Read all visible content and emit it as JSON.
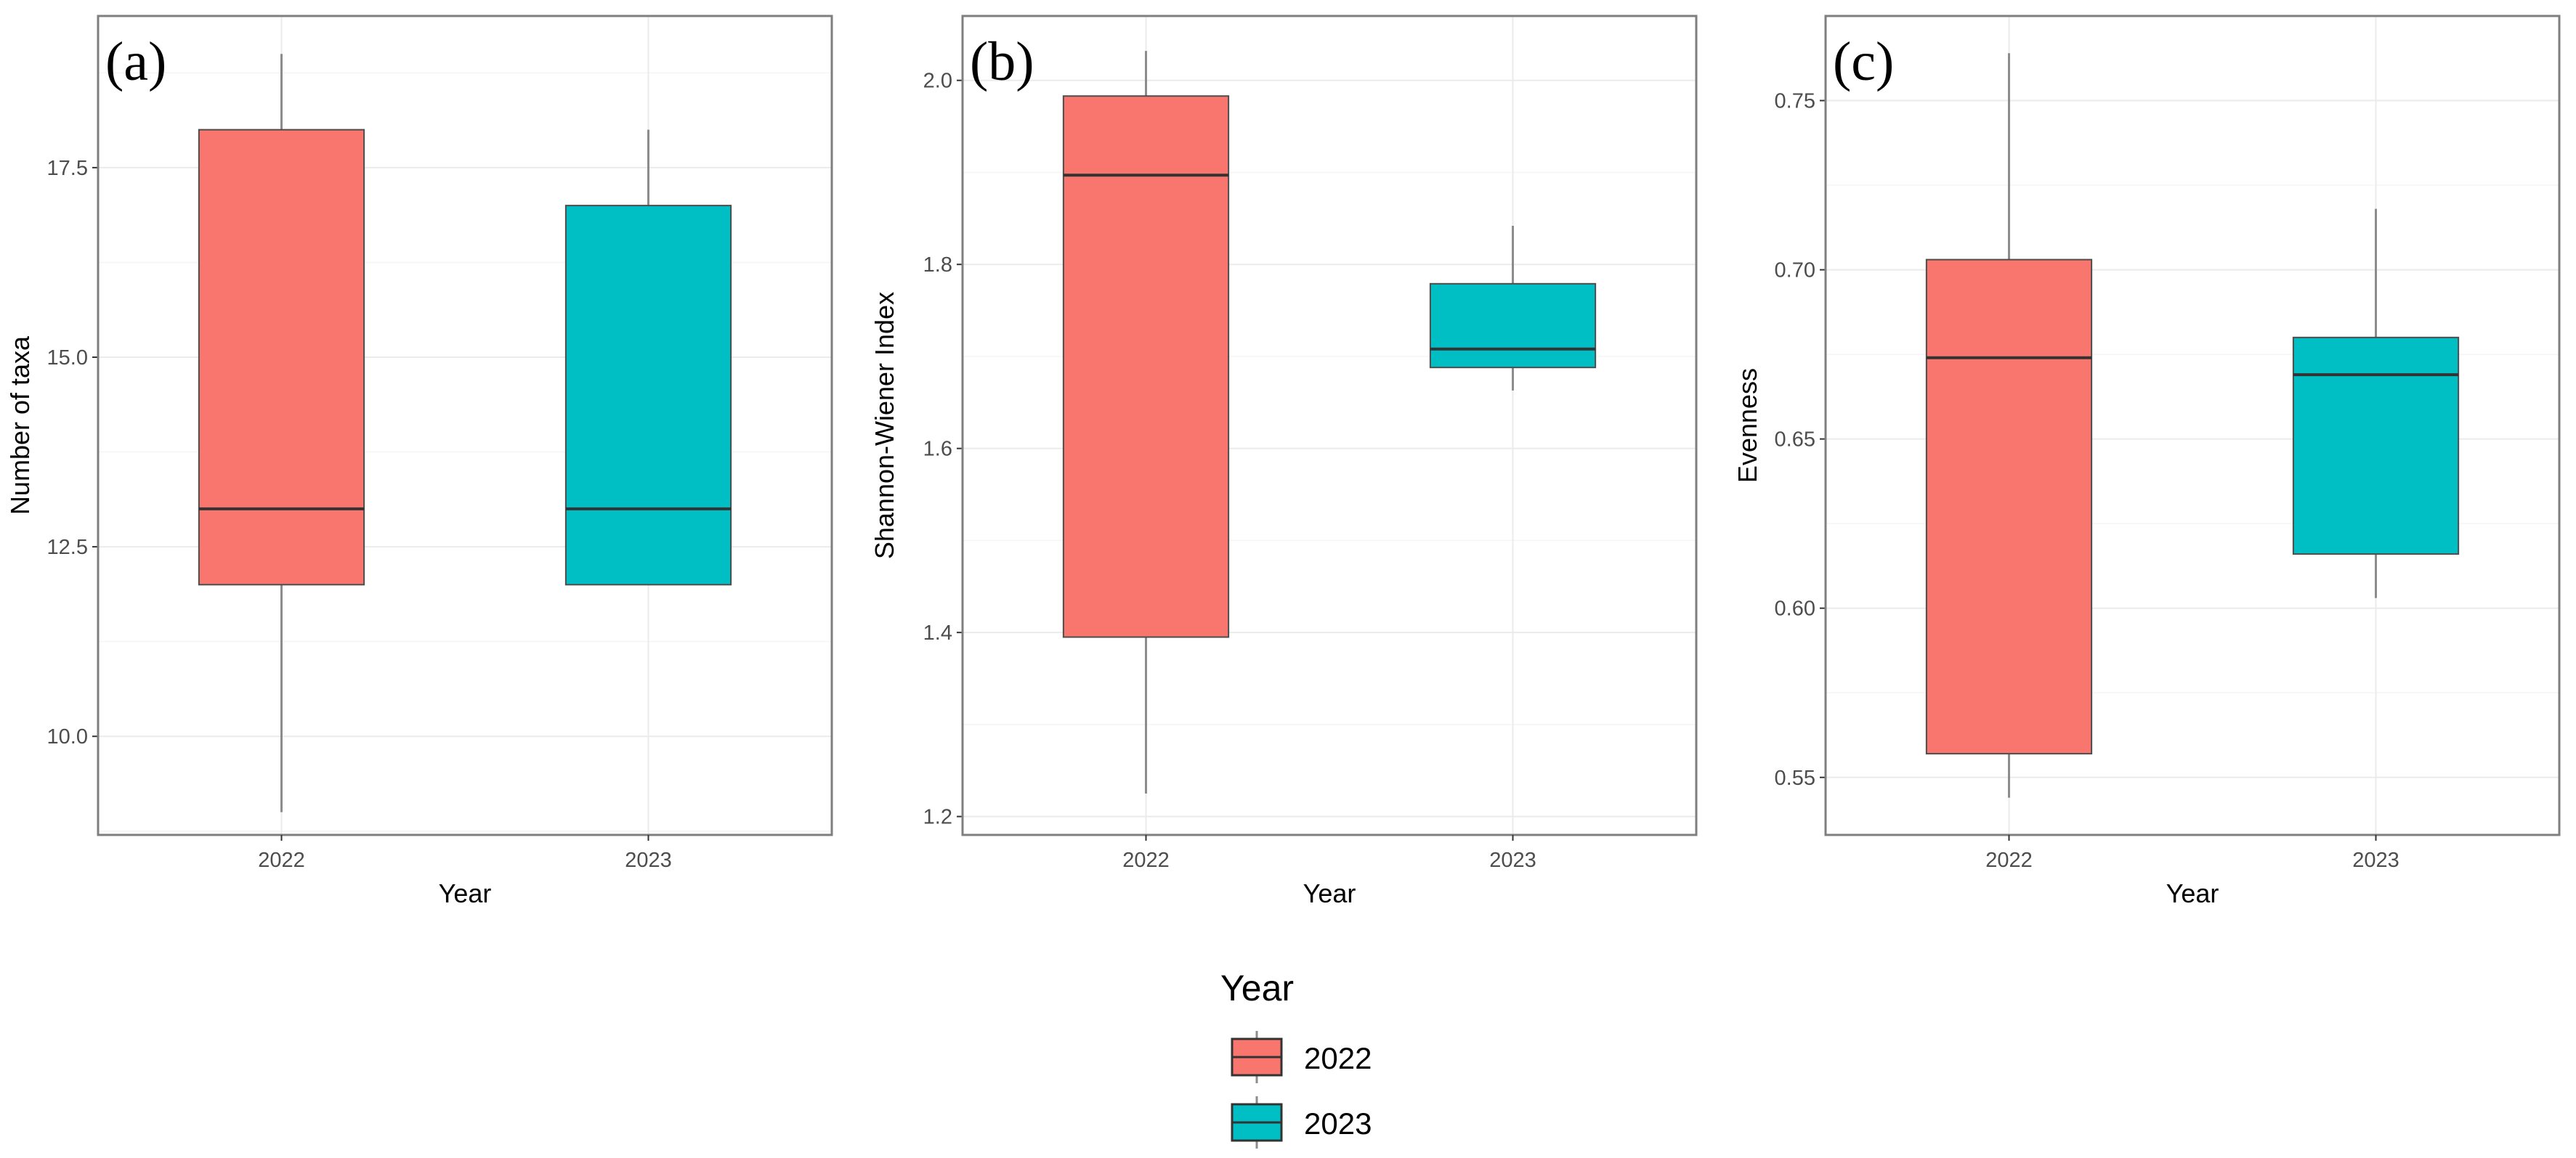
{
  "chart_data": [
    {
      "type": "boxplot",
      "panel_label": "(a)",
      "xlabel": "Year",
      "ylabel": "Number of taxa",
      "ylim": [
        8.7,
        19.5
      ],
      "yticks": [
        10.0,
        12.5,
        15.0,
        17.5
      ],
      "ytick_labels": [
        "10.0",
        "12.5",
        "15.0",
        "17.5"
      ],
      "categories": [
        "2022",
        "2023"
      ],
      "boxes": [
        {
          "category": "2022",
          "min": 9.0,
          "q1": 12.0,
          "median": 13.0,
          "q3": 18.0,
          "max": 19.0
        },
        {
          "category": "2023",
          "min": 12.0,
          "q1": 12.0,
          "median": 13.0,
          "q3": 17.0,
          "max": 18.0
        }
      ]
    },
    {
      "type": "boxplot",
      "panel_label": "(b)",
      "xlabel": "Year",
      "ylabel": "Shannon-Wiener Index",
      "ylim": [
        1.18,
        2.07
      ],
      "yticks": [
        1.2,
        1.4,
        1.6,
        1.8,
        2.0
      ],
      "ytick_labels": [
        "1.2",
        "1.4",
        "1.6",
        "1.8",
        "2.0"
      ],
      "categories": [
        "2022",
        "2023"
      ],
      "boxes": [
        {
          "category": "2022",
          "min": 1.225,
          "q1": 1.395,
          "median": 1.897,
          "q3": 1.983,
          "max": 2.032
        },
        {
          "category": "2023",
          "min": 1.663,
          "q1": 1.688,
          "median": 1.708,
          "q3": 1.779,
          "max": 1.842
        }
      ]
    },
    {
      "type": "boxplot",
      "panel_label": "(c)",
      "xlabel": "Year",
      "ylabel": "Evenness",
      "ylim": [
        0.533,
        0.775
      ],
      "yticks": [
        0.55,
        0.6,
        0.65,
        0.7,
        0.75
      ],
      "ytick_labels": [
        "0.55",
        "0.60",
        "0.65",
        "0.70",
        "0.75"
      ],
      "categories": [
        "2022",
        "2023"
      ],
      "boxes": [
        {
          "category": "2022",
          "min": 0.544,
          "q1": 0.557,
          "median": 0.674,
          "q3": 0.703,
          "max": 0.764
        },
        {
          "category": "2023",
          "min": 0.603,
          "q1": 0.616,
          "median": 0.669,
          "q3": 0.68,
          "max": 0.718
        }
      ]
    }
  ],
  "legend": {
    "title": "Year",
    "items": [
      {
        "label": "2022",
        "color": "#F8766D"
      },
      {
        "label": "2023",
        "color": "#00BFC4"
      }
    ]
  },
  "colors": {
    "2022": "#F8766D",
    "2023": "#00BFC4",
    "panel_border": "#7f7f7f",
    "grid_major": "#ebebeb",
    "grid_minor": "#f5f5f5",
    "whisker": "#8c8c8c",
    "median": "#333333"
  }
}
